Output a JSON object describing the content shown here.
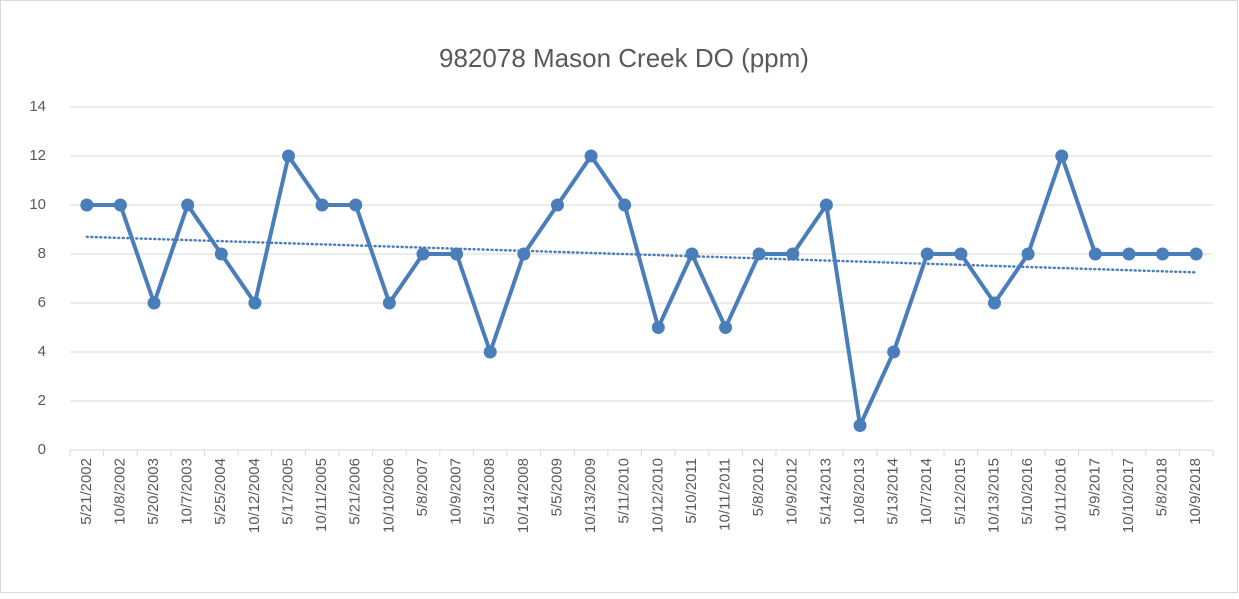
{
  "chart_data": {
    "type": "line",
    "title": "982078 Mason Creek DO (ppm)",
    "categories": [
      "5/21/2002",
      "10/8/2002",
      "5/20/2003",
      "10/7/2003",
      "5/25/2004",
      "10/12/2004",
      "5/17/2005",
      "10/11/2005",
      "5/21/2006",
      "10/10/2006",
      "5/8/2007",
      "10/9/2007",
      "5/13/2008",
      "10/14/2008",
      "5/5/2009",
      "10/13/2009",
      "5/11/2010",
      "10/12/2010",
      "5/10/2011",
      "10/11/2011",
      "5/8/2012",
      "10/9/2012",
      "5/14/2013",
      "10/8/2013",
      "5/13/2014",
      "10/7/2014",
      "5/12/2015",
      "10/13/2015",
      "5/10/2016",
      "10/11/2016",
      "5/9/2017",
      "10/10/2017",
      "5/8/2018",
      "10/9/2018"
    ],
    "values": [
      10,
      10,
      6,
      10,
      8,
      6,
      12,
      10,
      10,
      6,
      8,
      8,
      4,
      8,
      10,
      12,
      10,
      5,
      8,
      5,
      8,
      8,
      10,
      1,
      4,
      8,
      8,
      6,
      8,
      12,
      8,
      8,
      8,
      8
    ],
    "color": "#4a7ebb",
    "trendline": {
      "start": 8.7,
      "end": 7.25,
      "style": "dotted"
    },
    "ylim": [
      0,
      14
    ],
    "yticks": [
      0,
      2,
      4,
      6,
      8,
      10,
      12,
      14
    ],
    "grid": true
  }
}
